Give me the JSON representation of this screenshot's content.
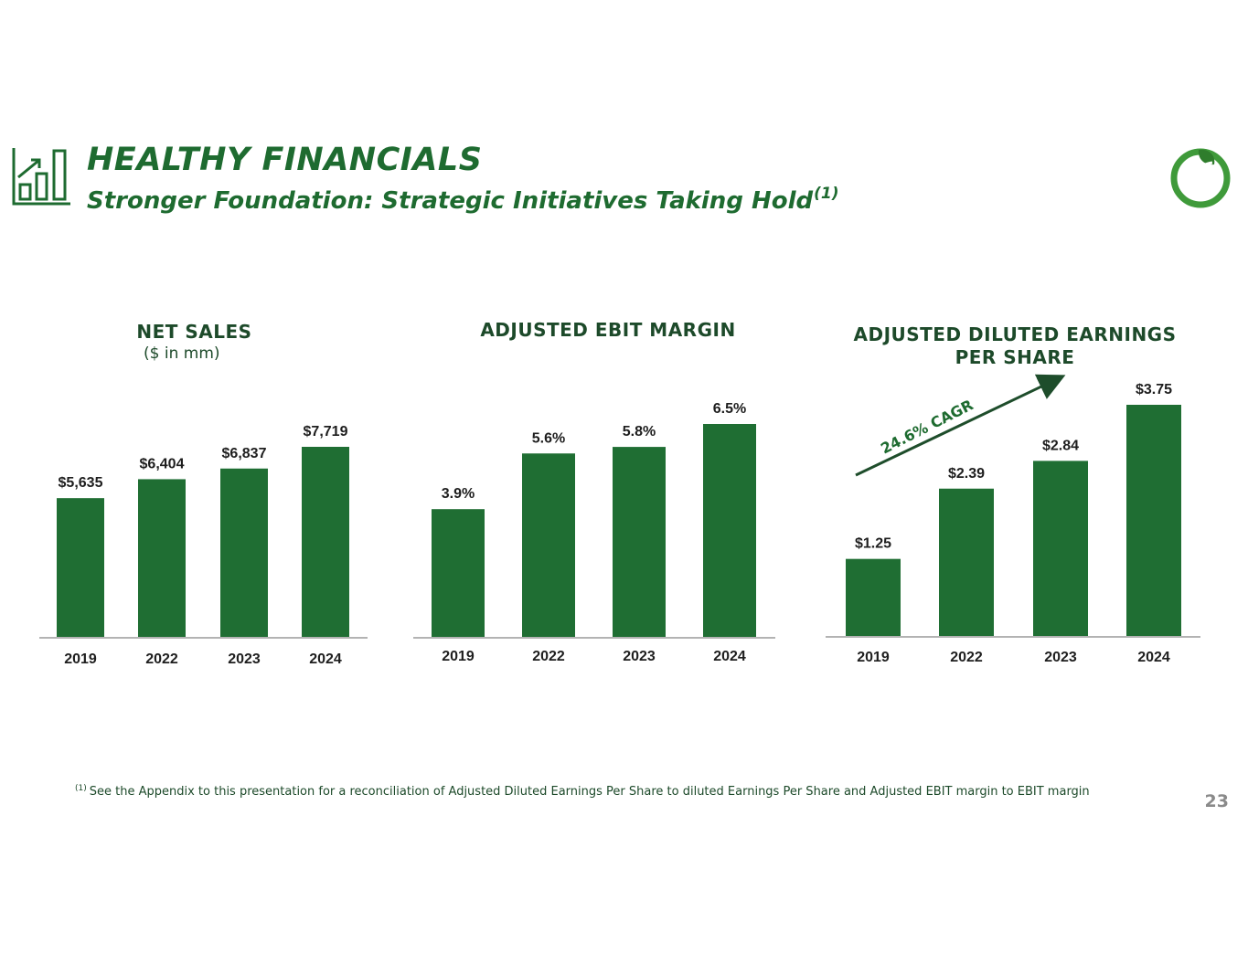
{
  "header": {
    "title": "HEALTHY FINANCIALS",
    "subtitle": "Stronger Foundation: Strategic Initiatives Taking Hold",
    "subtitle_footnote_ref": "(1)",
    "icon": "bar-chart-growth-icon"
  },
  "logo": {
    "icon": "leaf-circle-logo"
  },
  "colors": {
    "brand": "#1e6b30",
    "bar": "#1f6e33",
    "dark_text": "#1d4a2a",
    "axis": "#b3b3b3"
  },
  "charts": {
    "net_sales": {
      "title": "NET SALES",
      "subtitle": "($ in mm)"
    },
    "ebit_margin": {
      "title": "ADJUSTED EBIT MARGIN"
    },
    "eps": {
      "title": "ADJUSTED DILUTED EARNINGS PER SHARE",
      "cagr_label": "24.6% CAGR"
    }
  },
  "chart_data": [
    {
      "type": "bar",
      "title": "NET SALES",
      "subtitle": "($ in mm)",
      "categories": [
        "2019",
        "2022",
        "2023",
        "2024"
      ],
      "values": [
        5635,
        6404,
        6837,
        7719
      ],
      "value_labels": [
        "$5,635",
        "$6,404",
        "$6,837",
        "$7,719"
      ],
      "ylim": [
        0,
        7719
      ],
      "grid": false
    },
    {
      "type": "bar",
      "title": "ADJUSTED EBIT MARGIN",
      "categories": [
        "2019",
        "2022",
        "2023",
        "2024"
      ],
      "values": [
        3.9,
        5.6,
        5.8,
        6.5
      ],
      "value_labels": [
        "3.9%",
        "5.6%",
        "5.8%",
        "6.5%"
      ],
      "ylim": [
        0,
        6.5
      ],
      "grid": false
    },
    {
      "type": "bar",
      "title": "ADJUSTED DILUTED EARNINGS PER SHARE",
      "categories": [
        "2019",
        "2022",
        "2023",
        "2024"
      ],
      "values": [
        1.25,
        2.39,
        2.84,
        3.75
      ],
      "value_labels": [
        "$1.25",
        "$2.39",
        "$2.84",
        "$3.75"
      ],
      "ylim": [
        0,
        3.75
      ],
      "grid": false,
      "annotation": "24.6% CAGR"
    }
  ],
  "footnote": {
    "marker": "(1)",
    "text": "See the Appendix to this presentation for a reconciliation of Adjusted Diluted Earnings Per Share to diluted Earnings Per Share and Adjusted EBIT margin to EBIT margin"
  },
  "page_number": "23"
}
